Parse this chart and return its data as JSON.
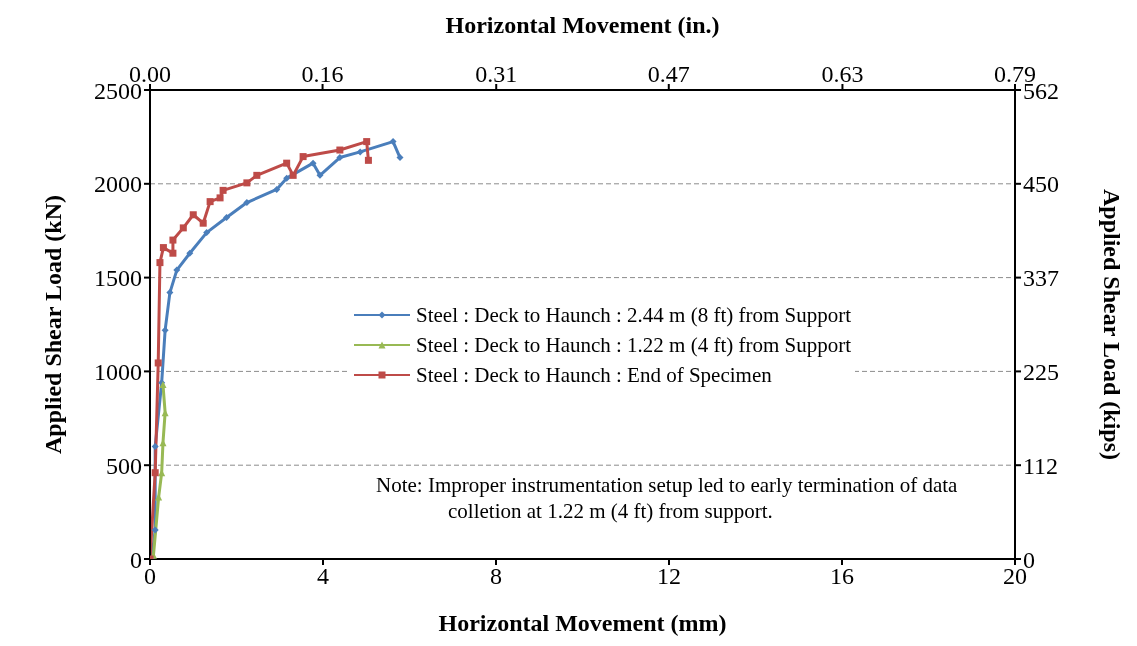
{
  "chart_data": {
    "type": "line",
    "xlabel": "Horizontal Movement (mm)",
    "x2label": "Horizontal Movement (in.)",
    "ylabel": "Applied Shear Load (kN)",
    "y2label": "Applied Shear Load (kips)",
    "xlim": [
      0,
      20
    ],
    "xticks": [
      0,
      4,
      8,
      12,
      16,
      20
    ],
    "x2lim": [
      0,
      0.787
    ],
    "x2ticks": [
      {
        "value": 0,
        "label": "0.00"
      },
      {
        "value": 0.157,
        "label": "0.16"
      },
      {
        "value": 0.315,
        "label": "0.31"
      },
      {
        "value": 0.472,
        "label": "0.47"
      },
      {
        "value": 0.63,
        "label": "0.63"
      },
      {
        "value": 0.787,
        "label": "0.79"
      }
    ],
    "ylim": [
      0,
      2500
    ],
    "yticks": [
      0,
      500,
      1000,
      1500,
      2000,
      2500
    ],
    "y2lim": [
      0,
      562
    ],
    "y2ticks": [
      {
        "value": 0,
        "label": "0"
      },
      {
        "value": 112.4,
        "label": "112"
      },
      {
        "value": 224.8,
        "label": "225"
      },
      {
        "value": 337.2,
        "label": "337"
      },
      {
        "value": 449.6,
        "label": "450"
      },
      {
        "value": 562,
        "label": "562"
      }
    ],
    "grid": "y",
    "legend": "right",
    "line_style": "solid",
    "annotations": [
      "Note:  Improper instrumentation setup led to early termination of data colletion at 1.22 m (4 ft) from support."
    ],
    "series": [
      {
        "name": "Steel : Deck to Haunch : 2.44 m (8 ft) from Support",
        "color": "#4a7ebb",
        "marker": "diamond",
        "x": [
          0.04,
          0.12,
          0.12,
          0.27,
          0.35,
          0.46,
          0.62,
          0.92,
          1.31,
          1.77,
          2.24,
          2.93,
          3.16,
          3.77,
          3.93,
          4.39,
          4.86,
          5.62,
          5.78
        ],
        "values": [
          0,
          155,
          600,
          940,
          1220,
          1420,
          1540,
          1630,
          1740,
          1820,
          1900,
          1970,
          2030,
          2110,
          2045,
          2140,
          2170,
          2225,
          2140
        ]
      },
      {
        "name": "Steel : Deck to Haunch : 1.22 m (4 ft) from Support",
        "color": "#98b954",
        "marker": "triangle",
        "x": [
          0.08,
          0.2,
          0.27,
          0.3,
          0.35,
          0.3
        ],
        "values": [
          20,
          330,
          460,
          620,
          780,
          930
        ]
      },
      {
        "name": "Steel : Deck to Haunch : End of Specimen",
        "color": "#be4b48",
        "marker": "square",
        "x": [
          0,
          0.12,
          0.19,
          0.23,
          0.31,
          0.53,
          0.53,
          0.77,
          1.0,
          1.23,
          1.39,
          1.62,
          1.69,
          2.24,
          2.47,
          3.16,
          3.31,
          3.54,
          4.39,
          5.01,
          5.05
        ],
        "values": [
          0,
          460,
          1045,
          1580,
          1660,
          1630,
          1700,
          1765,
          1835,
          1790,
          1905,
          1925,
          1965,
          2005,
          2045,
          2110,
          2045,
          2145,
          2180,
          2225,
          2125
        ]
      }
    ]
  }
}
